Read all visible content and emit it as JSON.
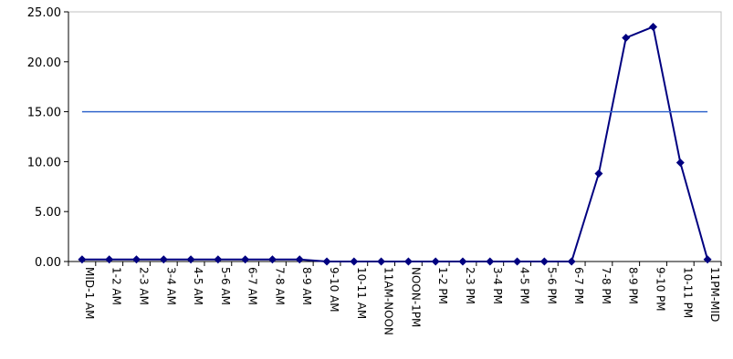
{
  "chart_data": {
    "type": "line",
    "title": "",
    "xlabel": "",
    "ylabel": "",
    "ylim": [
      0,
      25
    ],
    "y_ticks": [
      "0.00",
      "5.00",
      "10.00",
      "15.00",
      "20.00",
      "25.00"
    ],
    "grid": false,
    "legend": "none",
    "plot_area_color": "#c0c0c0",
    "categories": [
      "MID-1 AM",
      "1-2 AM",
      "2-3 AM",
      "3-4 AM",
      "4-5 AM",
      "5-6 AM",
      "6-7 AM",
      "7-8 AM",
      "8-9 AM",
      "9-10 AM",
      "10-11 AM",
      "11AM-NOON",
      "NOON-1PM",
      "1-2 PM",
      "2-3 PM",
      "3-4 PM",
      "4-5 PM",
      "5-6 PM",
      "6-7 PM",
      "7-8 PM",
      "8-9 PM",
      "9-10 PM",
      "10-11 PM",
      "11PM-MID"
    ],
    "series": [
      {
        "color": "#000080",
        "marker": "diamond",
        "values": [
          0.2,
          0.2,
          0.2,
          0.2,
          0.2,
          0.2,
          0.2,
          0.2,
          0.2,
          0.0,
          0.0,
          0.0,
          0.0,
          0.0,
          0.0,
          0.0,
          0.0,
          0.0,
          0.0,
          8.8,
          22.4,
          23.5,
          9.9,
          0.2
        ]
      },
      {
        "color": "#3366cc",
        "marker": "none",
        "values": [
          15,
          15,
          15,
          15,
          15,
          15,
          15,
          15,
          15,
          15,
          15,
          15,
          15,
          15,
          15,
          15,
          15,
          15,
          15,
          15,
          15,
          15,
          15,
          15
        ]
      }
    ]
  }
}
